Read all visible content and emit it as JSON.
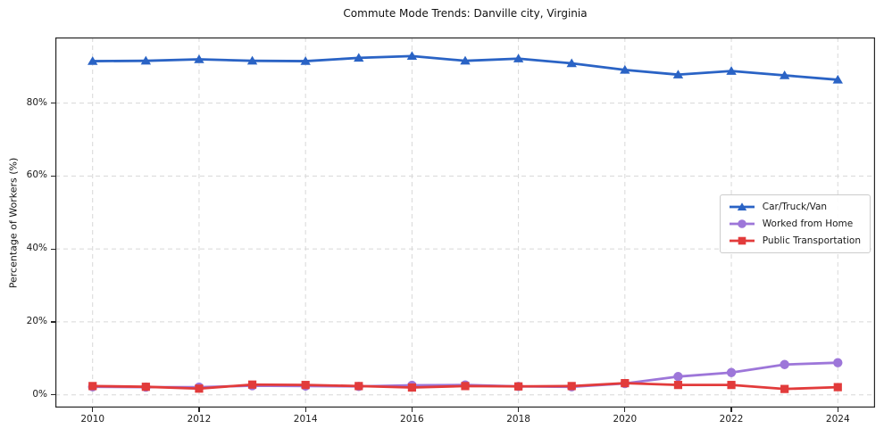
{
  "page": {
    "title": "Commute Mode Trends: Danville city, Virginia"
  },
  "chart_data": {
    "type": "line",
    "title": "Commute Mode Trends: Danville city, Virginia",
    "xlabel": "",
    "ylabel": "Percentage of Workers (%)",
    "x": [
      2010,
      2011,
      2012,
      2013,
      2014,
      2015,
      2016,
      2017,
      2018,
      2019,
      2020,
      2021,
      2022,
      2023,
      2024
    ],
    "series": [
      {
        "name": "Car/Truck/Van",
        "color": "#2a63c5",
        "marker": "triangle",
        "values": [
          91.5,
          91.6,
          92.0,
          91.6,
          91.5,
          92.4,
          92.9,
          91.6,
          92.2,
          90.9,
          89.1,
          87.8,
          88.8,
          87.6,
          86.4
        ]
      },
      {
        "name": "Worked from Home",
        "color": "#9d76d9",
        "marker": "circle",
        "values": [
          2.2,
          2.1,
          2.1,
          2.5,
          2.4,
          2.3,
          2.6,
          2.7,
          2.3,
          2.2,
          3.1,
          5.0,
          6.1,
          8.3,
          8.8
        ]
      },
      {
        "name": "Public Transportation",
        "color": "#e23b3b",
        "marker": "square",
        "values": [
          2.4,
          2.2,
          1.7,
          2.8,
          2.7,
          2.4,
          2.0,
          2.4,
          2.3,
          2.4,
          3.2,
          2.7,
          2.7,
          1.6,
          2.1
        ]
      }
    ],
    "xticks": [
      2010,
      2012,
      2014,
      2016,
      2018,
      2020,
      2022,
      2024
    ],
    "xtick_labels": [
      "2010",
      "2012",
      "2014",
      "2016",
      "2018",
      "2020",
      "2022",
      "2024"
    ],
    "yticks": [
      0,
      20,
      40,
      60,
      80
    ],
    "ytick_labels": [
      "0%",
      "20%",
      "40%",
      "60%",
      "80%"
    ],
    "xlim": [
      2009.3,
      2024.7
    ],
    "ylim": [
      -3.5,
      98
    ],
    "grid": true,
    "grid_color": "#d8d8d8",
    "spine_color": "#262626",
    "legend_position": "center right"
  }
}
